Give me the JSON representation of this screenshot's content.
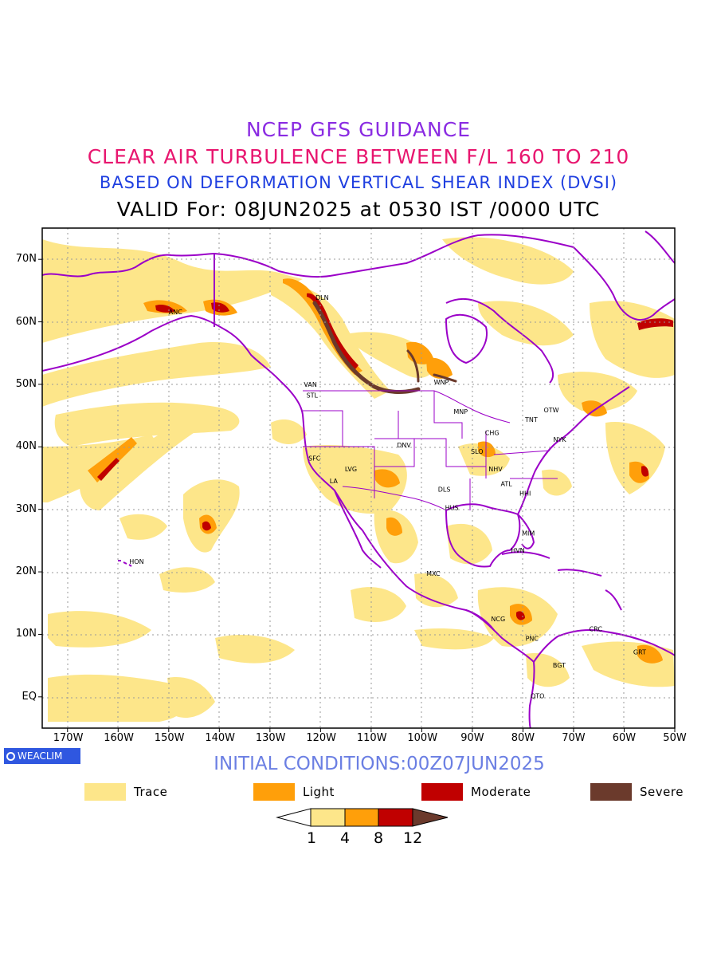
{
  "title": {
    "line1": "NCEP GFS GUIDANCE",
    "line2": "CLEAR AIR TURBULENCE BETWEEN F/L 160 TO 210",
    "line3": "BASED ON DEFORMATION VERTICAL SHEAR INDEX (DVSI)",
    "line4": "VALID For: 08JUN2025 at 0530 IST /0000 UTC"
  },
  "axes": {
    "lat_labels": [
      "70N",
      "60N",
      "50N",
      "40N",
      "30N",
      "20N",
      "10N",
      "EQ"
    ],
    "lon_labels": [
      "170W",
      "160W",
      "150W",
      "140W",
      "130W",
      "120W",
      "110W",
      "100W",
      "90W",
      "80W",
      "70W",
      "60W",
      "50W"
    ],
    "lon_range": [
      -175,
      -50
    ],
    "lat_range": [
      -5,
      75
    ]
  },
  "stations": [
    {
      "code": "ANC",
      "lon": -150.0,
      "lat": 61.2
    },
    {
      "code": "DLN",
      "lon": -121.0,
      "lat": 63.5
    },
    {
      "code": "VAN",
      "lon": -123.3,
      "lat": 49.6
    },
    {
      "code": "STL",
      "lon": -122.8,
      "lat": 47.9
    },
    {
      "code": "WNP",
      "lon": -97.6,
      "lat": 50.0
    },
    {
      "code": "MNP",
      "lon": -93.7,
      "lat": 45.3
    },
    {
      "code": "TNT",
      "lon": -79.6,
      "lat": 44.0
    },
    {
      "code": "OTW",
      "lon": -75.9,
      "lat": 45.5
    },
    {
      "code": "CHG",
      "lon": -87.5,
      "lat": 41.9
    },
    {
      "code": "NYK",
      "lon": -74.0,
      "lat": 40.8
    },
    {
      "code": "DNV",
      "lon": -104.9,
      "lat": 39.9
    },
    {
      "code": "SLO",
      "lon": -90.3,
      "lat": 38.9
    },
    {
      "code": "SFC",
      "lon": -122.4,
      "lat": 37.8
    },
    {
      "code": "LVG",
      "lon": -115.2,
      "lat": 36.1
    },
    {
      "code": "LA",
      "lon": -118.2,
      "lat": 34.2
    },
    {
      "code": "NHV",
      "lon": -86.8,
      "lat": 36.1
    },
    {
      "code": "ATL",
      "lon": -84.4,
      "lat": 33.7
    },
    {
      "code": "DLS",
      "lon": -96.8,
      "lat": 32.8
    },
    {
      "code": "HHI",
      "lon": -80.7,
      "lat": 32.2
    },
    {
      "code": "HUS",
      "lon": -95.4,
      "lat": 29.9
    },
    {
      "code": "MIM",
      "lon": -80.2,
      "lat": 25.8
    },
    {
      "code": "HVN",
      "lon": -82.4,
      "lat": 23.1
    },
    {
      "code": "HON",
      "lon": -157.8,
      "lat": 21.3
    },
    {
      "code": "MXC",
      "lon": -99.1,
      "lat": 19.4
    },
    {
      "code": "NCG",
      "lon": -86.3,
      "lat": 12.1
    },
    {
      "code": "CRC",
      "lon": -66.9,
      "lat": 10.5
    },
    {
      "code": "PNC",
      "lon": -79.5,
      "lat": 9.0
    },
    {
      "code": "GRT",
      "lon": -58.2,
      "lat": 6.8
    },
    {
      "code": "BGT",
      "lon": -74.1,
      "lat": 4.7
    },
    {
      "code": "QTO",
      "lon": -78.5,
      "lat": -0.2
    }
  ],
  "logo": "WEACLIM",
  "initial_conditions": "INITIAL CONDITIONS:00Z07JUN2025",
  "legend": [
    {
      "label": "Trace",
      "color": "#fde68a"
    },
    {
      "label": "Light",
      "color": "#ff9f0a"
    },
    {
      "label": "Moderate",
      "color": "#c00000"
    },
    {
      "label": "Severe",
      "color": "#6b3a2c"
    }
  ],
  "colorbar": {
    "levels": [
      "1",
      "4",
      "8",
      "12"
    ],
    "colors": [
      "#ffffff",
      "#fde68a",
      "#ff9f0a",
      "#c00000",
      "#6b3a2c"
    ]
  },
  "colors": {
    "coast": "#9b00c8",
    "trace": "#fde68a",
    "light": "#ff9f0a",
    "moderate": "#c00000",
    "severe": "#6b3a2c"
  }
}
